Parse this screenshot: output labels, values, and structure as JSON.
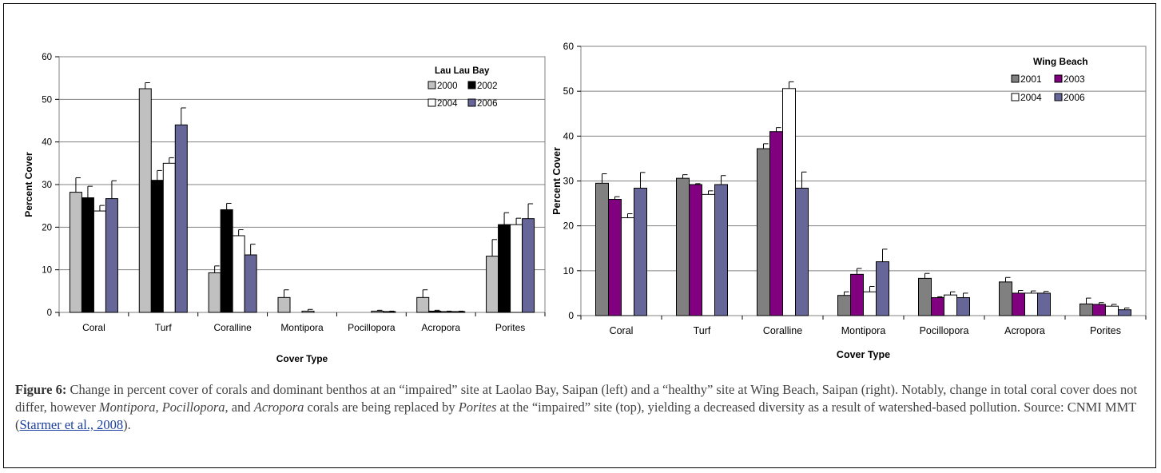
{
  "colors": {
    "c2000": "#c0c0c0",
    "c2002": "#000000",
    "c2004": "#ffffff",
    "c2006": "#666699",
    "c2001": "#808080",
    "c2003": "#800080"
  },
  "chart_data": [
    {
      "type": "bar",
      "legend_title": "Lau Lau Bay",
      "legend_position": "top-right",
      "xlabel": "Cover Type",
      "ylabel": "Percent Cover",
      "ylim": [
        0,
        60
      ],
      "yticks": [
        "0",
        "10",
        "20",
        "30",
        "40",
        "50",
        "60"
      ],
      "categories": [
        "Coral",
        "Turf",
        "Coralline",
        "Montipora",
        "Pocillopora",
        "Acropora",
        "Porites"
      ],
      "series": [
        {
          "name": "2000",
          "color_key": "c2000",
          "values": [
            28.2,
            52.5,
            9.3,
            3.5,
            0,
            3.5,
            13.2
          ],
          "errors": [
            3.4,
            1.4,
            1.6,
            1.8,
            0,
            1.8,
            3.9
          ]
        },
        {
          "name": "2002",
          "color_key": "c2002",
          "values": [
            26.9,
            31.0,
            24.1,
            0,
            0,
            0.3,
            20.6
          ],
          "errors": [
            2.7,
            2.3,
            1.5,
            0,
            0,
            0.2,
            2.8
          ]
        },
        {
          "name": "2004",
          "color_key": "c2004",
          "values": [
            23.8,
            35.0,
            18.0,
            0.3,
            0.3,
            0.2,
            20.6
          ],
          "errors": [
            1.3,
            1.3,
            1.4,
            0.4,
            0.2,
            0.1,
            1.5
          ]
        },
        {
          "name": "2006",
          "color_key": "c2006",
          "values": [
            26.7,
            44.0,
            13.5,
            0,
            0.2,
            0.2,
            22.0
          ],
          "errors": [
            4.2,
            4.0,
            2.5,
            0,
            0.1,
            0.1,
            3.5
          ]
        }
      ]
    },
    {
      "type": "bar",
      "legend_title": "Wing Beach",
      "legend_position": "top-right",
      "xlabel": "Cover Type",
      "ylabel": "Percent Cover",
      "ylim": [
        0,
        60
      ],
      "yticks": [
        "0",
        "10",
        "20",
        "30",
        "40",
        "50",
        "60"
      ],
      "categories": [
        "Coral",
        "Turf",
        "Coralline",
        "Montipora",
        "Pocillopora",
        "Acropora",
        "Porites"
      ],
      "series": [
        {
          "name": "2001",
          "color_key": "c2001",
          "values": [
            29.5,
            30.6,
            37.2,
            4.5,
            8.3,
            7.5,
            2.6
          ],
          "errors": [
            2.1,
            0.8,
            1.1,
            0.8,
            1.1,
            1.0,
            1.3
          ]
        },
        {
          "name": "2003",
          "color_key": "c2003",
          "values": [
            25.9,
            29.2,
            41.0,
            9.2,
            4.0,
            5.0,
            2.5
          ],
          "errors": [
            0.6,
            0.2,
            0.9,
            1.3,
            0.2,
            0.6,
            0.4
          ]
        },
        {
          "name": "2004",
          "color_key": "c2004",
          "values": [
            21.8,
            27.0,
            50.6,
            5.3,
            4.6,
            5.0,
            2.1
          ],
          "errors": [
            0.9,
            0.8,
            1.5,
            1.2,
            0.7,
            0.5,
            0.4
          ]
        },
        {
          "name": "2006",
          "color_key": "c2006",
          "values": [
            28.4,
            29.2,
            28.4,
            12.0,
            4.0,
            5.0,
            1.3
          ],
          "errors": [
            3.5,
            2.0,
            3.6,
            2.8,
            1.0,
            0.4,
            0.4
          ]
        }
      ]
    }
  ],
  "caption": {
    "label": "Figure 6:",
    "p1": " Change in percent cover of corals and dominant benthos at an “impaired” site at Laolao Bay, Saipan (left) and a “healthy” site at Wing Beach, Saipan (right).  Notably, change in total coral cover does not differ, however ",
    "i1": "Montipora",
    "p2": ", ",
    "i2": "Pocillopora",
    "p3": ", and ",
    "i3": "Acropora",
    "p4": " corals are being replaced by ",
    "i4": "Porites",
    "p5": " at the “impaired” site (top), yielding a decreased diversity as a result of watershed-based pollution.  Source: CNMI MMT (",
    "link": "Starmer et al., 2008",
    "p6": ")."
  }
}
